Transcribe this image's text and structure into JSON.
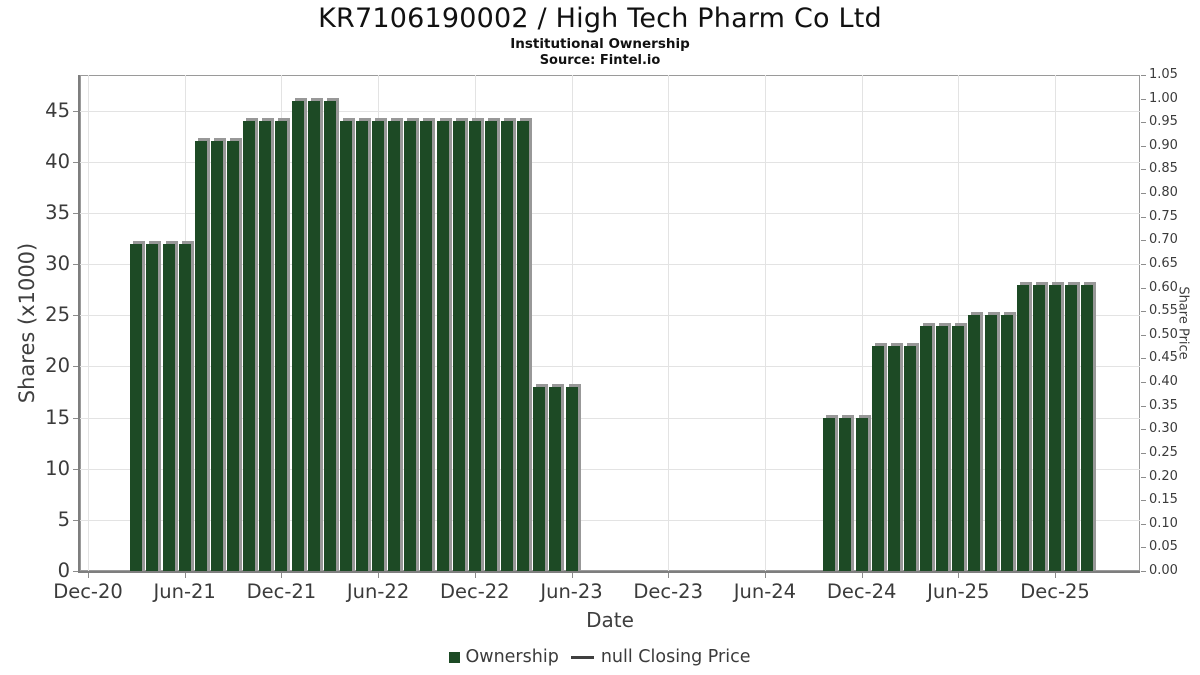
{
  "header": {
    "title": "KR7106190002 / High Tech Pharm Co Ltd",
    "subtitle": "Institutional Ownership",
    "source": "Source: Fintel.io"
  },
  "legend": {
    "ownership_label": "Ownership",
    "closing_price_label": "null Closing Price"
  },
  "colors": {
    "bar": "#1d4a25",
    "bar_shadow": "#989898",
    "grid": "#e3e3e3",
    "axis": "#7e7e7e",
    "tick_text": "#3b3b3b",
    "title_text": "#111111"
  },
  "chart_data": {
    "type": "bar",
    "title": "KR7106190002 / High Tech Pharm Co Ltd",
    "subtitle": "Institutional Ownership",
    "source": "Source: Fintel.io",
    "xlabel": "Date",
    "ylabel_left": "Shares (x1000)",
    "ylabel_right": "Share Price",
    "grid": true,
    "legend_position": "bottom",
    "x_tick_labels": [
      "Dec-20",
      "Jun-21",
      "Dec-21",
      "Jun-22",
      "Dec-22",
      "Jun-23",
      "Dec-23",
      "Jun-24",
      "Dec-24",
      "Jun-25",
      "Dec-25"
    ],
    "y_left_ticks": [
      0,
      5,
      10,
      15,
      20,
      25,
      30,
      35,
      40,
      45
    ],
    "y_left_range": [
      0,
      48.5
    ],
    "y_right_ticks": [
      0,
      0.05,
      0.1,
      0.15,
      0.2,
      0.25,
      0.3,
      0.35,
      0.4,
      0.45,
      0.5,
      0.55,
      0.6,
      0.65,
      0.7,
      0.75,
      0.8,
      0.85,
      0.9,
      0.95,
      1.0,
      1.05
    ],
    "y_right_range": [
      0,
      1.05
    ],
    "series": [
      {
        "name": "Ownership",
        "type": "bar",
        "color": "#1d4a25",
        "points": [
          {
            "date": "Mar-21",
            "shares_x1000": 32
          },
          {
            "date": "Apr-21",
            "shares_x1000": 32
          },
          {
            "date": "May-21",
            "shares_x1000": 32
          },
          {
            "date": "Jun-21",
            "shares_x1000": 32
          },
          {
            "date": "Jul-21",
            "shares_x1000": 42
          },
          {
            "date": "Aug-21",
            "shares_x1000": 42
          },
          {
            "date": "Sep-21",
            "shares_x1000": 42
          },
          {
            "date": "Oct-21",
            "shares_x1000": 44
          },
          {
            "date": "Nov-21",
            "shares_x1000": 44
          },
          {
            "date": "Dec-21",
            "shares_x1000": 44
          },
          {
            "date": "Jan-22",
            "shares_x1000": 46
          },
          {
            "date": "Feb-22",
            "shares_x1000": 46
          },
          {
            "date": "Mar-22",
            "shares_x1000": 46
          },
          {
            "date": "Apr-22",
            "shares_x1000": 44
          },
          {
            "date": "May-22",
            "shares_x1000": 44
          },
          {
            "date": "Jun-22",
            "shares_x1000": 44
          },
          {
            "date": "Jul-22",
            "shares_x1000": 44
          },
          {
            "date": "Aug-22",
            "shares_x1000": 44
          },
          {
            "date": "Sep-22",
            "shares_x1000": 44
          },
          {
            "date": "Oct-22",
            "shares_x1000": 44
          },
          {
            "date": "Nov-22",
            "shares_x1000": 44
          },
          {
            "date": "Dec-22",
            "shares_x1000": 44
          },
          {
            "date": "Jan-23",
            "shares_x1000": 44
          },
          {
            "date": "Feb-23",
            "shares_x1000": 44
          },
          {
            "date": "Mar-23",
            "shares_x1000": 44
          },
          {
            "date": "Apr-23",
            "shares_x1000": 18
          },
          {
            "date": "May-23",
            "shares_x1000": 18
          },
          {
            "date": "Jun-23",
            "shares_x1000": 18
          },
          {
            "date": "Oct-24",
            "shares_x1000": 15
          },
          {
            "date": "Nov-24",
            "shares_x1000": 15
          },
          {
            "date": "Dec-24",
            "shares_x1000": 15
          },
          {
            "date": "Jan-25",
            "shares_x1000": 22
          },
          {
            "date": "Feb-25",
            "shares_x1000": 22
          },
          {
            "date": "Mar-25",
            "shares_x1000": 22
          },
          {
            "date": "Apr-25",
            "shares_x1000": 24
          },
          {
            "date": "May-25",
            "shares_x1000": 24
          },
          {
            "date": "Jun-25",
            "shares_x1000": 24
          },
          {
            "date": "Jul-25",
            "shares_x1000": 25
          },
          {
            "date": "Aug-25",
            "shares_x1000": 25
          },
          {
            "date": "Sep-25",
            "shares_x1000": 25
          },
          {
            "date": "Oct-25",
            "shares_x1000": 28
          },
          {
            "date": "Nov-25",
            "shares_x1000": 28
          },
          {
            "date": "Dec-25",
            "shares_x1000": 28
          },
          {
            "date": "Jan-26",
            "shares_x1000": 28
          },
          {
            "date": "Feb-26",
            "shares_x1000": 28
          }
        ]
      },
      {
        "name": "null Closing Price",
        "type": "line",
        "points": []
      }
    ]
  }
}
